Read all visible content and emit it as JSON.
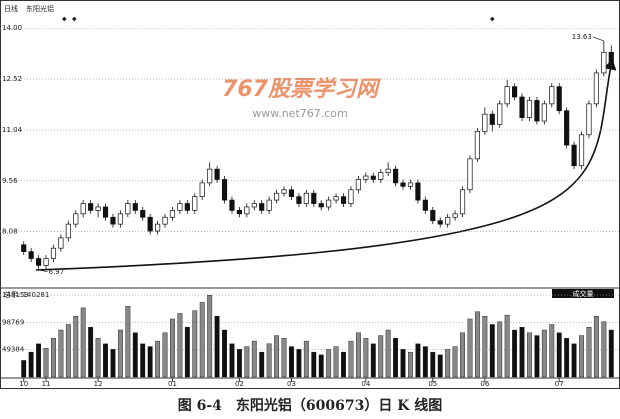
{
  "chart_data": {
    "type": "candlestick",
    "period": "日线",
    "stock": "东阳光铝",
    "watermark": [
      "767股票学习网",
      "www.net767.com"
    ],
    "volume_label": "总手: 140281",
    "volume_title": "成交量",
    "caption": "图 6-4　东阳光铝（600673）日 K 线图",
    "up_color": "#ffffff",
    "down_color": "#111111",
    "grid": true,
    "ylim": [
      6.5,
      14.24
    ],
    "yticks": [
      {
        "value": 14,
        "label": "14.00"
      },
      12.52,
      11.04,
      9.56,
      8.08
    ],
    "volume_ylim": [
      0,
      157400
    ],
    "volume_yticks": [
      148153,
      98769,
      49384
    ],
    "categories": [
      "10",
      null,
      null,
      "11",
      null,
      null,
      null,
      null,
      null,
      null,
      "12",
      null,
      null,
      null,
      null,
      null,
      null,
      null,
      null,
      null,
      "01",
      null,
      null,
      null,
      null,
      null,
      null,
      null,
      null,
      "02",
      null,
      null,
      null,
      null,
      null,
      null,
      "03",
      null,
      null,
      null,
      null,
      null,
      null,
      null,
      null,
      null,
      "04",
      null,
      null,
      null,
      null,
      null,
      null,
      null,
      null,
      "05",
      null,
      null,
      null,
      null,
      null,
      null,
      "06",
      null,
      null,
      null,
      null,
      null,
      null,
      null,
      null,
      null,
      "07",
      null,
      null,
      null,
      null,
      null,
      null,
      null
    ],
    "ohlc": [
      [
        7.7,
        7.8,
        7.4,
        7.5
      ],
      [
        7.5,
        7.6,
        7.2,
        7.3
      ],
      [
        7.3,
        7.4,
        6.97,
        7.1
      ],
      [
        7.1,
        7.4,
        7.0,
        7.3
      ],
      [
        7.3,
        7.7,
        7.2,
        7.6
      ],
      [
        7.6,
        8.0,
        7.5,
        7.9
      ],
      [
        7.9,
        8.4,
        7.8,
        8.3
      ],
      [
        8.3,
        8.7,
        8.2,
        8.6
      ],
      [
        8.6,
        9.0,
        8.5,
        8.9
      ],
      [
        8.9,
        9.0,
        8.6,
        8.7
      ],
      [
        8.7,
        8.9,
        8.5,
        8.8
      ],
      [
        8.8,
        8.9,
        8.4,
        8.5
      ],
      [
        8.5,
        8.6,
        8.2,
        8.3
      ],
      [
        8.3,
        8.7,
        8.2,
        8.6
      ],
      [
        8.6,
        9.0,
        8.5,
        8.9
      ],
      [
        8.9,
        9.0,
        8.6,
        8.7
      ],
      [
        8.7,
        8.8,
        8.4,
        8.5
      ],
      [
        8.5,
        8.6,
        8.0,
        8.1
      ],
      [
        8.1,
        8.4,
        8.0,
        8.3
      ],
      [
        8.3,
        8.6,
        8.2,
        8.5
      ],
      [
        8.5,
        8.8,
        8.4,
        8.7
      ],
      [
        8.7,
        9.0,
        8.6,
        8.9
      ],
      [
        8.9,
        9.0,
        8.6,
        8.7
      ],
      [
        8.7,
        9.2,
        8.6,
        9.1
      ],
      [
        9.1,
        9.6,
        9.0,
        9.5
      ],
      [
        9.5,
        10.1,
        9.4,
        9.9
      ],
      [
        9.9,
        10.0,
        9.5,
        9.6
      ],
      [
        9.6,
        9.7,
        8.9,
        9.0
      ],
      [
        9.0,
        9.1,
        8.6,
        8.7
      ],
      [
        8.7,
        8.8,
        8.5,
        8.6
      ],
      [
        8.6,
        8.9,
        8.5,
        8.8
      ],
      [
        8.8,
        9.0,
        8.7,
        8.9
      ],
      [
        8.9,
        9.0,
        8.6,
        8.7
      ],
      [
        8.7,
        9.1,
        8.6,
        9.0
      ],
      [
        9.0,
        9.3,
        8.9,
        9.2
      ],
      [
        9.2,
        9.4,
        9.1,
        9.3
      ],
      [
        9.3,
        9.4,
        9.0,
        9.1
      ],
      [
        9.1,
        9.2,
        8.8,
        8.9
      ],
      [
        8.9,
        9.3,
        8.8,
        9.2
      ],
      [
        9.2,
        9.3,
        8.8,
        8.9
      ],
      [
        8.9,
        9.0,
        8.7,
        8.8
      ],
      [
        8.8,
        9.1,
        8.7,
        9.0
      ],
      [
        9.0,
        9.2,
        8.9,
        9.1
      ],
      [
        9.1,
        9.2,
        8.8,
        8.9
      ],
      [
        8.9,
        9.4,
        8.8,
        9.3
      ],
      [
        9.3,
        9.7,
        9.2,
        9.6
      ],
      [
        9.6,
        9.8,
        9.5,
        9.7
      ],
      [
        9.7,
        9.8,
        9.5,
        9.6
      ],
      [
        9.6,
        9.9,
        9.5,
        9.8
      ],
      [
        9.8,
        10.1,
        9.7,
        9.9
      ],
      [
        9.9,
        10.0,
        9.4,
        9.5
      ],
      [
        9.5,
        9.6,
        9.3,
        9.4
      ],
      [
        9.4,
        9.6,
        9.3,
        9.5
      ],
      [
        9.5,
        9.6,
        8.9,
        9.0
      ],
      [
        9.0,
        9.1,
        8.6,
        8.7
      ],
      [
        8.7,
        8.8,
        8.3,
        8.4
      ],
      [
        8.4,
        8.5,
        8.2,
        8.3
      ],
      [
        8.3,
        8.6,
        8.2,
        8.5
      ],
      [
        8.5,
        8.7,
        8.4,
        8.6
      ],
      [
        8.6,
        9.4,
        8.5,
        9.3
      ],
      [
        9.3,
        10.3,
        9.2,
        10.2
      ],
      [
        10.2,
        11.1,
        10.1,
        11.0
      ],
      [
        11.0,
        11.7,
        10.9,
        11.5
      ],
      [
        11.5,
        11.6,
        11.0,
        11.2
      ],
      [
        11.2,
        11.9,
        11.1,
        11.8
      ],
      [
        11.8,
        12.5,
        11.7,
        12.3
      ],
      [
        12.3,
        12.4,
        11.9,
        12.0
      ],
      [
        12.0,
        12.1,
        11.3,
        11.4
      ],
      [
        11.4,
        12.0,
        11.3,
        11.9
      ],
      [
        11.9,
        12.0,
        11.2,
        11.3
      ],
      [
        11.3,
        11.9,
        11.2,
        11.8
      ],
      [
        11.8,
        12.4,
        11.7,
        12.3
      ],
      [
        12.3,
        12.4,
        11.5,
        11.6
      ],
      [
        11.6,
        11.7,
        10.5,
        10.6
      ],
      [
        10.6,
        10.7,
        9.9,
        10.0
      ],
      [
        10.0,
        11.0,
        9.9,
        10.9
      ],
      [
        10.9,
        11.9,
        10.8,
        11.8
      ],
      [
        11.8,
        12.8,
        11.7,
        12.7
      ],
      [
        12.7,
        13.63,
        12.6,
        13.3
      ],
      [
        13.3,
        13.5,
        12.9,
        13.0
      ]
    ],
    "volumes": [
      30000,
      45000,
      60000,
      52000,
      70000,
      85000,
      95000,
      110000,
      125000,
      90000,
      70000,
      60000,
      50000,
      85000,
      128000,
      80000,
      60000,
      55000,
      65000,
      80000,
      105000,
      115000,
      90000,
      120000,
      135000,
      148000,
      110000,
      85000,
      60000,
      50000,
      55000,
      65000,
      45000,
      60000,
      75000,
      70000,
      55000,
      50000,
      65000,
      45000,
      40000,
      50000,
      55000,
      45000,
      65000,
      80000,
      70000,
      60000,
      75000,
      85000,
      70000,
      50000,
      45000,
      60000,
      55000,
      45000,
      40000,
      50000,
      55000,
      80000,
      105000,
      118000,
      110000,
      95000,
      100000,
      112000,
      85000,
      90000,
      80000,
      75000,
      85000,
      95000,
      80000,
      70000,
      60000,
      75000,
      90000,
      110000,
      100000,
      85000
    ]
  }
}
